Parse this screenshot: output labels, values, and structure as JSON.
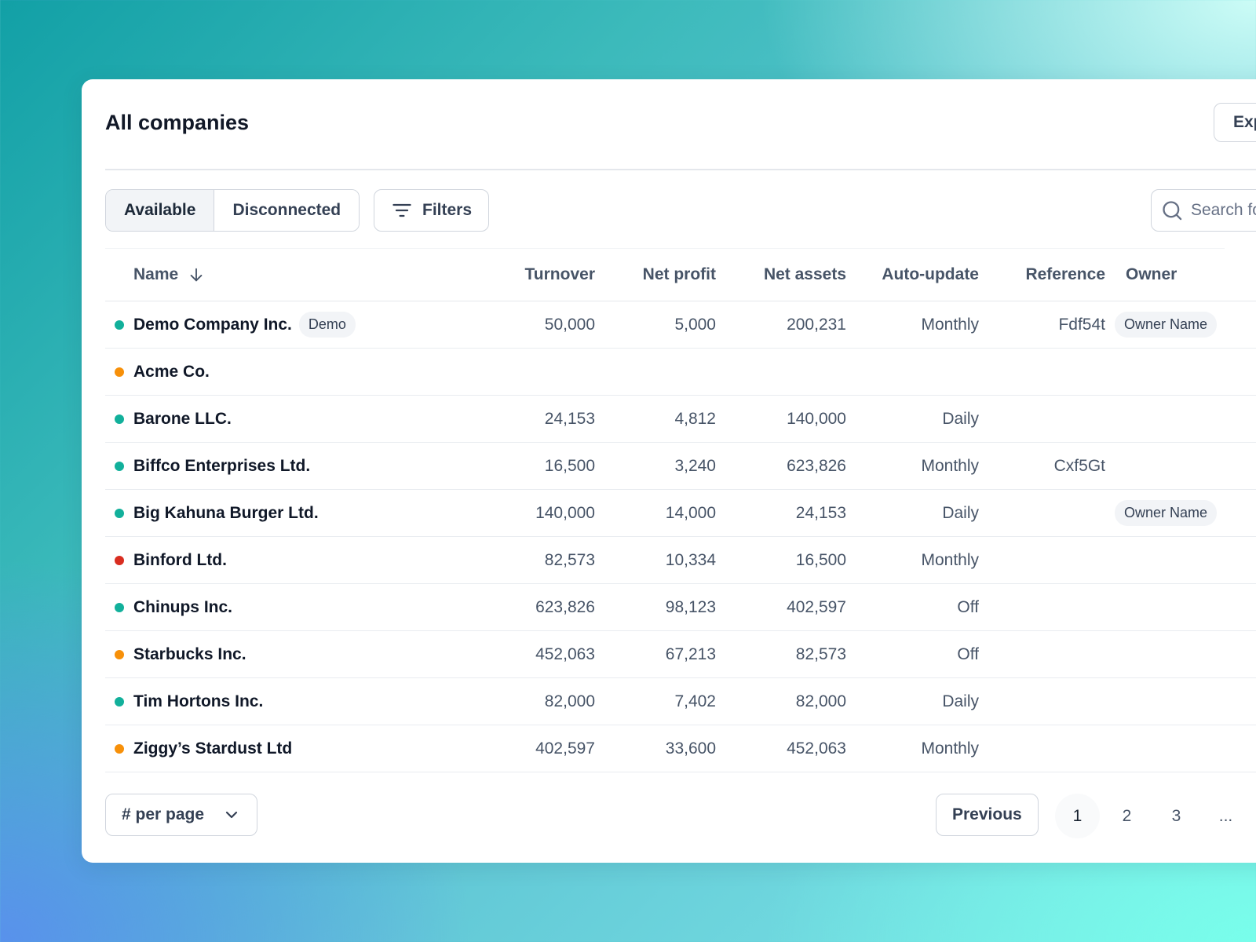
{
  "card": {
    "title": "All companies",
    "export_label": "Export"
  },
  "toolbar": {
    "segments": [
      {
        "label": "Available",
        "active": true
      },
      {
        "label": "Disconnected",
        "active": false
      }
    ],
    "filters_label": "Filters",
    "search_placeholder": "Search for company"
  },
  "table": {
    "columns": {
      "name": "Name",
      "turnover": "Turnover",
      "net_profit": "Net profit",
      "net_assets": "Net assets",
      "auto_update": "Auto-update",
      "reference": "Reference",
      "owner": "Owner"
    },
    "rows": [
      {
        "status": "green",
        "name": "Demo Company Inc.",
        "tag": "Demo",
        "turnover": "50,000",
        "net_profit": "5,000",
        "net_assets": "200,231",
        "auto_update": "Monthly",
        "reference": "Fdf54t",
        "owner": "Owner Name"
      },
      {
        "status": "orange",
        "name": "Acme Co.",
        "tag": "",
        "turnover": "",
        "net_profit": "",
        "net_assets": "",
        "auto_update": "",
        "reference": "",
        "owner": ""
      },
      {
        "status": "green",
        "name": "Barone LLC.",
        "tag": "",
        "turnover": "24,153",
        "net_profit": "4,812",
        "net_assets": "140,000",
        "auto_update": "Daily",
        "reference": "",
        "owner": ""
      },
      {
        "status": "green",
        "name": "Biffco Enterprises Ltd.",
        "tag": "",
        "turnover": "16,500",
        "net_profit": "3,240",
        "net_assets": "623,826",
        "auto_update": "Monthly",
        "reference": "Cxf5Gt",
        "owner": ""
      },
      {
        "status": "green",
        "name": "Big Kahuna Burger Ltd.",
        "tag": "",
        "turnover": "140,000",
        "net_profit": "14,000",
        "net_assets": "24,153",
        "auto_update": "Daily",
        "reference": "",
        "owner": "Owner Name"
      },
      {
        "status": "red",
        "name": "Binford Ltd.",
        "tag": "",
        "turnover": "82,573",
        "net_profit": "10,334",
        "net_assets": "16,500",
        "auto_update": "Monthly",
        "reference": "",
        "owner": ""
      },
      {
        "status": "green",
        "name": "Chinups Inc.",
        "tag": "",
        "turnover": "623,826",
        "net_profit": "98,123",
        "net_assets": "402,597",
        "auto_update": "Off",
        "reference": "",
        "owner": ""
      },
      {
        "status": "orange",
        "name": "Starbucks Inc.",
        "tag": "",
        "turnover": "452,063",
        "net_profit": "67,213",
        "net_assets": "82,573",
        "auto_update": "Off",
        "reference": "",
        "owner": ""
      },
      {
        "status": "green",
        "name": "Tim Hortons Inc.",
        "tag": "",
        "turnover": "82,000",
        "net_profit": "7,402",
        "net_assets": "82,000",
        "auto_update": "Daily",
        "reference": "",
        "owner": ""
      },
      {
        "status": "orange",
        "name": "Ziggy’s Stardust Ltd",
        "tag": "",
        "turnover": "402,597",
        "net_profit": "33,600",
        "net_assets": "452,063",
        "auto_update": "Monthly",
        "reference": "",
        "owner": ""
      }
    ]
  },
  "pagination": {
    "per_page_label": "# per page",
    "previous_label": "Previous",
    "pages": [
      {
        "label": "1",
        "current": true
      },
      {
        "label": "2",
        "current": false
      },
      {
        "label": "3",
        "current": false
      },
      {
        "label": "...",
        "current": false
      }
    ]
  },
  "icons": {
    "filters": "filter-lines-icon",
    "search": "search-icon",
    "sort": "arrow-down-icon",
    "dropdown": "chevron-down-icon"
  },
  "colors": {
    "status_green": "#12b09b",
    "status_orange": "#f79009",
    "status_red": "#d92d20"
  }
}
